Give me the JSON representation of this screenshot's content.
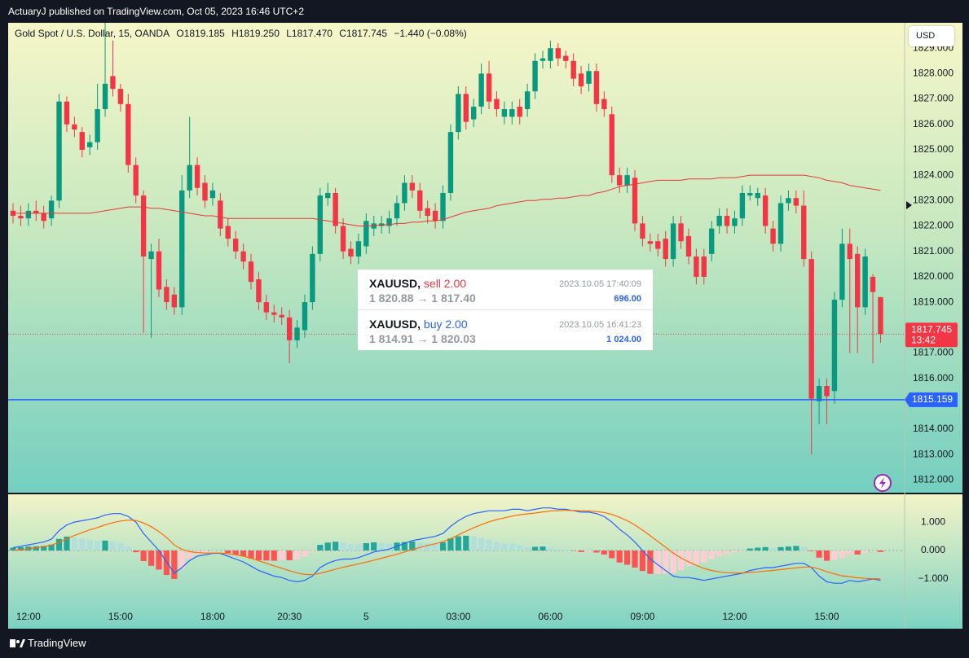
{
  "header": "ActuaryJ published on TradingView.com, Oct 05, 2023 16:46 UTC+2",
  "legend": {
    "symbol": "Gold Spot / U.S. Dollar, 15, OANDA",
    "open": "O1819.185",
    "high": "H1819.250",
    "low": "L1817.470",
    "close": "C1817.745",
    "change": "−1.440 (−0.08%)"
  },
  "currency_button": "USD",
  "trades": [
    {
      "symbol": "XAUUSD,",
      "side": "sell 2.00",
      "prices": "1 820.88 → 1 817.40",
      "time": "2023.10.05 17:40:09",
      "amount": "696.00"
    },
    {
      "symbol": "XAUUSD,",
      "side": "buy 2.00",
      "prices": "1 814.91 → 1 820.03",
      "time": "2023.10.05 16:41:23",
      "amount": "1 024.00"
    }
  ],
  "footer": "TradingView",
  "chart_data": [
    {
      "type": "candlestick",
      "categories": [
        null,
        null,
        "12:00",
        null,
        null,
        null,
        null,
        null,
        null,
        null,
        null,
        null,
        null,
        null,
        "15:00",
        null,
        null,
        null,
        null,
        null,
        null,
        null,
        null,
        null,
        null,
        null,
        "18:00",
        null,
        null,
        null,
        null,
        null,
        null,
        null,
        null,
        null,
        "20:30",
        null,
        null,
        null,
        null,
        null,
        null,
        null,
        null,
        null,
        "5",
        null,
        null,
        null,
        null,
        null,
        null,
        null,
        null,
        null,
        null,
        null,
        "03:00",
        null,
        null,
        null,
        null,
        null,
        null,
        null,
        null,
        null,
        null,
        null,
        "06:00",
        null,
        null,
        null,
        null,
        null,
        null,
        null,
        null,
        null,
        null,
        null,
        "09:00",
        null,
        null,
        null,
        null,
        null,
        null,
        null,
        null,
        null,
        null,
        null,
        "12:00",
        null,
        null,
        null,
        null,
        null,
        null,
        null,
        null,
        null,
        null,
        null,
        "15:00",
        null,
        null,
        null,
        null,
        null,
        null,
        null
      ],
      "open": [
        1822.6,
        1822.4,
        1822.3,
        1822.6,
        1822.5,
        1822.3,
        1823.0,
        1826.9,
        1826.0,
        1825.7,
        1825.1,
        1825.3,
        1826.6,
        1827.9,
        1827.4,
        1826.8,
        1824.4,
        1823.2,
        1820.7,
        1821.0,
        1819.6,
        1819.3,
        1818.8,
        1823.4,
        1824.4,
        1823.7,
        1823.1,
        1823.0,
        1822.0,
        1821.5,
        1821.0,
        1820.6,
        1819.9,
        1819.0,
        1818.6,
        1818.5,
        1818.4,
        1817.5,
        1817.9,
        1819.0,
        1820.9,
        1823.1,
        1823.3,
        1822.0,
        1821.1,
        1820.8,
        1821.2,
        1821.9,
        1822.0,
        1822.0,
        1822.3,
        1822.9,
        1823.7,
        1823.4,
        1822.7,
        1822.6,
        1822.2,
        1823.3,
        1825.7,
        1827.2,
        1826.2,
        1826.7,
        1828.0,
        1827.0,
        1826.3,
        1826.3,
        1826.7,
        1826.6,
        1827.3,
        1828.5,
        1828.5,
        1829.0,
        1828.7,
        1828.5,
        1828.0,
        1827.6,
        1828.1,
        1827.0,
        1826.4,
        1824.0,
        1823.6,
        1823.9,
        1822.1,
        1821.4,
        1821.4,
        1821.5,
        1820.7,
        1822.1,
        1821.6,
        1820.8,
        1820.8,
        1820.9,
        1822.0,
        1822.4,
        1822.0,
        1822.3,
        1823.2,
        1823.1,
        1823.2,
        1821.9,
        1821.3,
        1822.9,
        1823.1,
        1822.8,
        1820.7,
        1815.1,
        1815.7,
        1815.5,
        1819.1,
        1821.3,
        1820.9,
        1818.8,
        1820.0,
        1819.2
      ],
      "high": [
        1822.9,
        1822.8,
        1822.9,
        1823.0,
        1822.8,
        1823.2,
        1827.2,
        1827.1,
        1826.3,
        1825.9,
        1825.6,
        1827.6,
        1830.0,
        1829.3,
        1827.6,
        1827.2,
        1824.7,
        1823.4,
        1821.3,
        1821.5,
        1819.9,
        1819.6,
        1824.0,
        1826.3,
        1824.7,
        1824.0,
        1823.7,
        1823.3,
        1822.3,
        1821.8,
        1821.3,
        1820.9,
        1820.2,
        1819.3,
        1818.9,
        1818.8,
        1818.7,
        1818.3,
        1819.3,
        1821.2,
        1823.5,
        1823.7,
        1823.5,
        1822.3,
        1821.4,
        1821.7,
        1822.5,
        1822.4,
        1822.4,
        1822.6,
        1823.2,
        1824.0,
        1824.0,
        1823.7,
        1823.0,
        1822.9,
        1823.6,
        1826.0,
        1827.5,
        1827.5,
        1827.0,
        1828.4,
        1828.5,
        1827.3,
        1826.9,
        1826.9,
        1827.0,
        1827.6,
        1828.8,
        1828.9,
        1829.3,
        1829.2,
        1828.9,
        1828.8,
        1828.3,
        1828.4,
        1828.4,
        1827.3,
        1826.7,
        1824.3,
        1824.3,
        1824.2,
        1822.4,
        1821.7,
        1821.7,
        1821.8,
        1822.4,
        1822.4,
        1821.9,
        1821.1,
        1821.1,
        1822.2,
        1822.7,
        1822.7,
        1822.6,
        1823.6,
        1823.6,
        1823.5,
        1823.5,
        1822.2,
        1823.2,
        1823.4,
        1823.4,
        1823.4,
        1821.0,
        1816.0,
        1816.0,
        1819.4,
        1821.9,
        1821.9,
        1821.2,
        1821.1,
        1820.1,
        1819.2
      ],
      "low": [
        1822.1,
        1822.0,
        1822.0,
        1822.2,
        1821.9,
        1822.0,
        1822.7,
        1825.7,
        1825.5,
        1824.7,
        1824.8,
        1825.0,
        1826.3,
        1827.1,
        1826.5,
        1824.1,
        1822.9,
        1817.8,
        1817.6,
        1819.2,
        1818.7,
        1818.5,
        1818.5,
        1823.1,
        1823.2,
        1822.7,
        1822.8,
        1821.6,
        1821.2,
        1820.7,
        1820.3,
        1819.5,
        1818.7,
        1818.3,
        1818.2,
        1818.1,
        1816.6,
        1817.2,
        1817.6,
        1818.7,
        1820.6,
        1822.8,
        1821.7,
        1820.7,
        1820.5,
        1820.5,
        1820.9,
        1821.6,
        1821.7,
        1821.7,
        1822.0,
        1822.6,
        1823.1,
        1822.3,
        1822.1,
        1821.9,
        1821.9,
        1823.0,
        1825.4,
        1825.8,
        1825.9,
        1826.4,
        1826.6,
        1826.3,
        1826.0,
        1826.0,
        1826.0,
        1826.3,
        1827.0,
        1828.2,
        1828.2,
        1828.3,
        1828.2,
        1827.5,
        1827.2,
        1827.3,
        1826.5,
        1826.3,
        1823.7,
        1823.3,
        1823.3,
        1821.8,
        1821.2,
        1821.0,
        1820.8,
        1820.4,
        1820.4,
        1821.1,
        1820.5,
        1819.7,
        1819.7,
        1820.6,
        1821.7,
        1821.7,
        1821.7,
        1822.0,
        1823.0,
        1822.8,
        1821.7,
        1821.0,
        1821.0,
        1822.6,
        1822.5,
        1820.4,
        1813.0,
        1814.2,
        1814.2,
        1815.0,
        1818.8,
        1817.0,
        1817.0,
        1818.5,
        1816.6,
        1817.4
      ],
      "close": [
        1822.4,
        1822.3,
        1822.6,
        1822.5,
        1822.2,
        1823.0,
        1826.9,
        1826.0,
        1825.8,
        1825.0,
        1825.3,
        1826.6,
        1827.6,
        1827.4,
        1826.8,
        1824.4,
        1823.2,
        1820.8,
        1821.0,
        1819.5,
        1819.0,
        1818.8,
        1823.4,
        1824.4,
        1823.5,
        1823.0,
        1823.4,
        1821.9,
        1821.5,
        1821.0,
        1820.6,
        1819.8,
        1819.0,
        1818.6,
        1818.5,
        1818.4,
        1817.5,
        1818.0,
        1819.0,
        1820.9,
        1823.2,
        1823.3,
        1822.0,
        1821.0,
        1820.8,
        1821.4,
        1822.2,
        1822.1,
        1822.1,
        1822.3,
        1822.9,
        1823.7,
        1823.4,
        1822.6,
        1822.4,
        1822.2,
        1823.3,
        1825.7,
        1827.2,
        1826.1,
        1826.7,
        1828.0,
        1826.9,
        1826.6,
        1826.6,
        1826.6,
        1826.3,
        1827.3,
        1828.5,
        1828.6,
        1829.0,
        1828.6,
        1828.5,
        1827.8,
        1827.5,
        1828.1,
        1826.8,
        1826.6,
        1824.0,
        1823.6,
        1824.0,
        1822.1,
        1821.5,
        1821.3,
        1821.1,
        1820.7,
        1822.1,
        1821.4,
        1820.8,
        1820.0,
        1820.0,
        1821.9,
        1822.4,
        1822.0,
        1822.3,
        1823.3,
        1823.3,
        1823.3,
        1822.0,
        1821.3,
        1822.9,
        1823.1,
        1822.8,
        1820.7,
        1815.2,
        1815.7,
        1815.3,
        1819.1,
        1821.3,
        1820.7,
        1818.8,
        1820.8,
        1819.4,
        1817.745
      ],
      "up_color": "#089981",
      "down_color": "#f23645",
      "overlay_line": {
        "color": "#e53935",
        "values": [
          1822.5,
          1822.5,
          1822.5,
          1822.5,
          1822.5,
          1822.5,
          1822.5,
          1822.5,
          1822.5,
          1822.5,
          1822.5,
          1822.55,
          1822.6,
          1822.65,
          1822.7,
          1822.75,
          1822.75,
          1822.75,
          1822.7,
          1822.7,
          1822.65,
          1822.6,
          1822.55,
          1822.5,
          1822.45,
          1822.4,
          1822.4,
          1822.35,
          1822.3,
          1822.3,
          1822.3,
          1822.3,
          1822.3,
          1822.3,
          1822.3,
          1822.3,
          1822.3,
          1822.3,
          1822.3,
          1822.3,
          1822.25,
          1822.2,
          1822.15,
          1822.1,
          1822.05,
          1822.0,
          1822.0,
          1822.0,
          1822.05,
          1822.05,
          1822.1,
          1822.1,
          1822.15,
          1822.15,
          1822.2,
          1822.2,
          1822.25,
          1822.35,
          1822.45,
          1822.55,
          1822.6,
          1822.65,
          1822.7,
          1822.8,
          1822.85,
          1822.9,
          1822.95,
          1823.0,
          1823.0,
          1823.05,
          1823.05,
          1823.1,
          1823.1,
          1823.15,
          1823.2,
          1823.2,
          1823.3,
          1823.35,
          1823.45,
          1823.55,
          1823.6,
          1823.65,
          1823.7,
          1823.75,
          1823.8,
          1823.8,
          1823.8,
          1823.8,
          1823.85,
          1823.85,
          1823.85,
          1823.85,
          1823.9,
          1823.9,
          1823.9,
          1823.95,
          1824.0,
          1824.0,
          1824.0,
          1824.0,
          1824.0,
          1824.0,
          1824.0,
          1824.0,
          1823.95,
          1823.9,
          1823.8,
          1823.75,
          1823.7,
          1823.6,
          1823.55,
          1823.5,
          1823.45,
          1823.4
        ]
      },
      "ylim": [
        1811.5,
        1830.0
      ],
      "yticks": [
        {
          "value": 1812,
          "label": "1812.000"
        },
        {
          "value": 1813,
          "label": "1813.000"
        },
        {
          "value": 1814,
          "label": "1814.000"
        },
        {
          "value": 1815,
          "label": "1815.000"
        },
        {
          "value": 1816,
          "label": "1816.000"
        },
        {
          "value": 1817,
          "label": "1817.000"
        },
        {
          "value": 1818,
          "label": "1818.000"
        },
        {
          "value": 1819,
          "label": "1819.000"
        },
        {
          "value": 1820,
          "label": "1820.000"
        },
        {
          "value": 1821,
          "label": "1821.000"
        },
        {
          "value": 1822,
          "label": "1822.000"
        },
        {
          "value": 1823,
          "label": "1823.000"
        },
        {
          "value": 1824,
          "label": "1824.000"
        },
        {
          "value": 1825,
          "label": "1825.000"
        },
        {
          "value": 1826,
          "label": "1826.000"
        },
        {
          "value": 1827,
          "label": "1827.000"
        },
        {
          "value": 1828,
          "label": "1828.000"
        },
        {
          "value": 1829,
          "label": "1829.000"
        }
      ],
      "last_price": 1817.745,
      "countdown": "13:42",
      "last_price_color": "#f23645",
      "order_line": {
        "value": 1815.159,
        "color": "#2962ff"
      }
    },
    {
      "type": "macd",
      "histogram": {
        "colors": [
          "#26a69a",
          "#b2dfdb",
          "#ff5252",
          "#ffcdd2"
        ],
        "values": [
          0.1,
          0.12,
          0.14,
          0.15,
          0.16,
          0.21,
          0.41,
          0.49,
          0.47,
          0.42,
          0.37,
          0.34,
          0.35,
          0.32,
          0.26,
          0.13,
          -0.06,
          -0.37,
          -0.54,
          -0.67,
          -0.86,
          -1.0,
          -0.64,
          -0.31,
          -0.13,
          -0.06,
          -0.01,
          -0.01,
          -0.09,
          -0.15,
          -0.2,
          -0.28,
          -0.34,
          -0.35,
          -0.36,
          -0.33,
          -0.34,
          -0.31,
          -0.21,
          -0.05,
          0.2,
          0.28,
          0.31,
          0.29,
          0.23,
          0.22,
          0.26,
          0.29,
          0.27,
          0.25,
          0.28,
          0.3,
          0.32,
          0.29,
          0.27,
          0.26,
          0.29,
          0.43,
          0.5,
          0.52,
          0.5,
          0.44,
          0.39,
          0.31,
          0.25,
          0.24,
          0.19,
          0.11,
          0.13,
          0.14,
          0.11,
          0.05,
          0.04,
          -0.01,
          -0.05,
          -0.04,
          -0.07,
          -0.14,
          -0.27,
          -0.42,
          -0.5,
          -0.6,
          -0.72,
          -0.82,
          -0.82,
          -0.82,
          -0.81,
          -0.69,
          -0.55,
          -0.48,
          -0.42,
          -0.3,
          -0.2,
          -0.12,
          -0.06,
          -0.01,
          0.07,
          0.1,
          0.12,
          0.1,
          0.12,
          0.14,
          0.16,
          0.13,
          -0.02,
          -0.25,
          -0.36,
          -0.33,
          -0.26,
          -0.13,
          -0.14,
          -0.07,
          -0.01,
          -0.05
        ]
      },
      "macd": {
        "color": "#2962ff",
        "values": [
          0.1,
          0.15,
          0.2,
          0.25,
          0.3,
          0.4,
          0.7,
          0.9,
          1.0,
          1.05,
          1.1,
          1.15,
          1.25,
          1.3,
          1.3,
          1.2,
          1.0,
          0.6,
          0.3,
          0.0,
          -0.4,
          -0.8,
          -0.6,
          -0.35,
          -0.2,
          -0.15,
          -0.1,
          -0.1,
          -0.2,
          -0.3,
          -0.4,
          -0.55,
          -0.7,
          -0.8,
          -0.9,
          -0.95,
          -1.05,
          -1.1,
          -1.05,
          -0.9,
          -0.6,
          -0.45,
          -0.35,
          -0.3,
          -0.3,
          -0.25,
          -0.15,
          -0.05,
          0.0,
          0.05,
          0.15,
          0.25,
          0.35,
          0.4,
          0.45,
          0.5,
          0.6,
          0.85,
          1.05,
          1.2,
          1.3,
          1.35,
          1.4,
          1.4,
          1.4,
          1.45,
          1.45,
          1.4,
          1.45,
          1.5,
          1.5,
          1.45,
          1.45,
          1.4,
          1.35,
          1.35,
          1.3,
          1.2,
          1.0,
          0.75,
          0.55,
          0.3,
          0.0,
          -0.3,
          -0.5,
          -0.7,
          -0.9,
          -0.95,
          -0.95,
          -1.0,
          -1.05,
          -1.0,
          -0.95,
          -0.9,
          -0.85,
          -0.8,
          -0.7,
          -0.65,
          -0.6,
          -0.6,
          -0.55,
          -0.5,
          -0.45,
          -0.45,
          -0.6,
          -0.9,
          -1.1,
          -1.15,
          -1.15,
          -1.05,
          -1.1,
          -1.05,
          -1.0,
          -1.05
        ]
      },
      "signal": {
        "color": "#ff6d00",
        "values": [
          0.0,
          0.03,
          0.06,
          0.1,
          0.14,
          0.19,
          0.29,
          0.41,
          0.53,
          0.63,
          0.73,
          0.81,
          0.9,
          0.98,
          1.04,
          1.07,
          1.06,
          0.97,
          0.84,
          0.67,
          0.46,
          0.2,
          0.04,
          -0.04,
          -0.07,
          -0.09,
          -0.09,
          -0.09,
          -0.11,
          -0.15,
          -0.2,
          -0.27,
          -0.36,
          -0.45,
          -0.54,
          -0.62,
          -0.71,
          -0.79,
          -0.84,
          -0.85,
          -0.8,
          -0.73,
          -0.66,
          -0.59,
          -0.53,
          -0.47,
          -0.41,
          -0.34,
          -0.27,
          -0.2,
          -0.13,
          -0.05,
          0.03,
          0.11,
          0.18,
          0.24,
          0.31,
          0.42,
          0.55,
          0.68,
          0.8,
          0.91,
          1.01,
          1.09,
          1.15,
          1.21,
          1.26,
          1.29,
          1.32,
          1.36,
          1.39,
          1.4,
          1.41,
          1.41,
          1.4,
          1.39,
          1.37,
          1.34,
          1.27,
          1.17,
          1.05,
          0.9,
          0.72,
          0.52,
          0.32,
          0.12,
          -0.09,
          -0.26,
          -0.4,
          -0.52,
          -0.63,
          -0.7,
          -0.75,
          -0.78,
          -0.79,
          -0.79,
          -0.77,
          -0.75,
          -0.72,
          -0.7,
          -0.67,
          -0.64,
          -0.61,
          -0.58,
          -0.58,
          -0.65,
          -0.74,
          -0.82,
          -0.89,
          -0.92,
          -0.96,
          -0.98,
          -0.99,
          -1.0
        ]
      },
      "ylim": [
        -2.75,
        1.95
      ],
      "yticks": [
        {
          "value": 1,
          "label": "1.000"
        },
        {
          "value": 0,
          "label": "0.000"
        },
        {
          "value": -1,
          "label": "−1.000"
        }
      ]
    }
  ]
}
